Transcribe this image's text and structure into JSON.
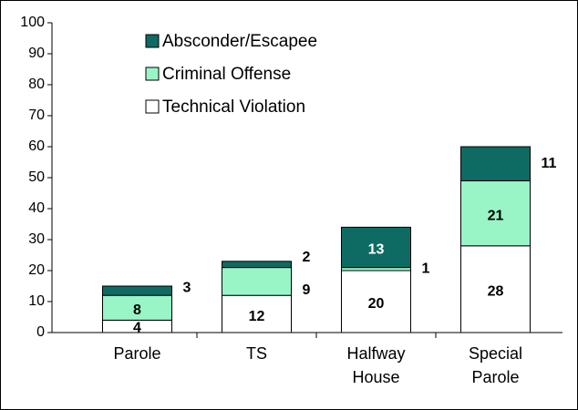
{
  "chart_data": {
    "type": "stacked-bar",
    "categories": [
      "Parole",
      "TS",
      "Halfway House",
      "Special Parole"
    ],
    "series": [
      {
        "name": "Technical Violation",
        "color": "#ffffff",
        "values": [
          4,
          12,
          20,
          28
        ]
      },
      {
        "name": "Criminal Offense",
        "color": "#99f5c6",
        "values": [
          8,
          9,
          1,
          21
        ]
      },
      {
        "name": "Absconder/Escapee",
        "color": "#0e6b63",
        "values": [
          3,
          2,
          13,
          11
        ]
      }
    ],
    "ylim": [
      0,
      100
    ],
    "yticks": [
      0,
      10,
      20,
      30,
      40,
      50,
      60,
      70,
      80,
      90,
      100
    ],
    "grid": false,
    "legend": "top-left"
  }
}
